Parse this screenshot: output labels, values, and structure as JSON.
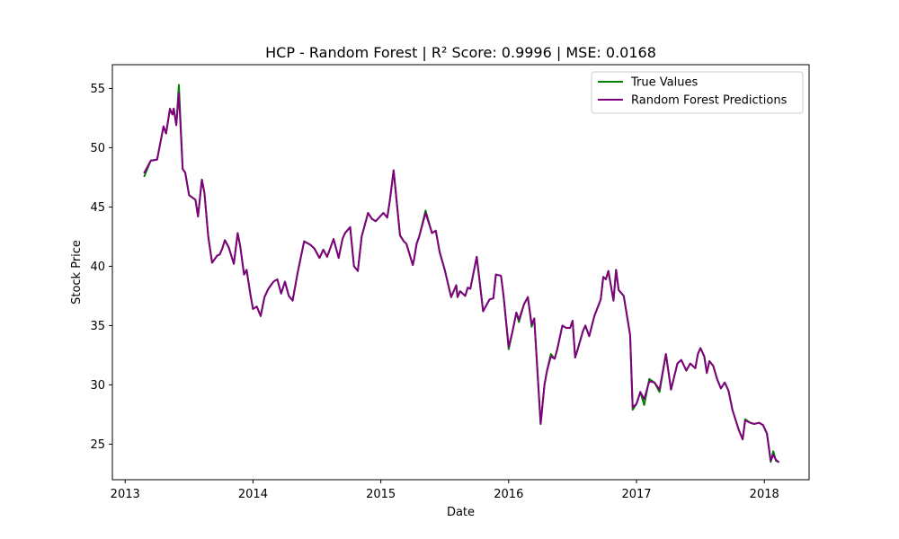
{
  "chart_data": {
    "type": "line",
    "title": "HCP - Random Forest | R² Score: 0.9996 | MSE: 0.0168",
    "xlabel": "Date",
    "ylabel": "Stock Price",
    "xlim": [
      2012.9,
      2018.35
    ],
    "ylim": [
      22,
      57
    ],
    "x_ticks": [
      2013,
      2014,
      2015,
      2016,
      2017,
      2018
    ],
    "x_tick_labels": [
      "2013",
      "2014",
      "2015",
      "2016",
      "2017",
      "2018"
    ],
    "y_ticks": [
      25,
      30,
      35,
      40,
      45,
      50,
      55
    ],
    "y_tick_labels": [
      "25",
      "30",
      "35",
      "40",
      "45",
      "50",
      "55"
    ],
    "grid": false,
    "legend": "top-right",
    "x": [
      2013.15,
      2013.2,
      2013.25,
      2013.3,
      2013.32,
      2013.35,
      2013.37,
      2013.38,
      2013.4,
      2013.42,
      2013.45,
      2013.47,
      2013.5,
      2013.55,
      2013.57,
      2013.6,
      2013.62,
      2013.65,
      2013.68,
      2013.72,
      2013.74,
      2013.76,
      2013.78,
      2013.81,
      2013.85,
      2013.88,
      2013.9,
      2013.93,
      2013.95,
      2013.98,
      2014.0,
      2014.03,
      2014.06,
      2014.09,
      2014.12,
      2014.16,
      2014.19,
      2014.22,
      2014.25,
      2014.28,
      2014.31,
      2014.35,
      2014.4,
      2014.45,
      2014.48,
      2014.52,
      2014.55,
      2014.58,
      2014.6,
      2014.63,
      2014.67,
      2014.7,
      2014.72,
      2014.76,
      2014.79,
      2014.82,
      2014.85,
      2014.9,
      2014.93,
      2014.96,
      2015.02,
      2015.05,
      2015.07,
      2015.1,
      2015.15,
      2015.18,
      2015.2,
      2015.25,
      2015.26,
      2015.28,
      2015.3,
      2015.35,
      2015.4,
      2015.43,
      2015.46,
      2015.5,
      2015.55,
      2015.59,
      2015.6,
      2015.62,
      2015.66,
      2015.68,
      2015.7,
      2015.75,
      2015.77,
      2015.8,
      2015.85,
      2015.88,
      2015.9,
      2015.94,
      2015.96,
      2016.0,
      2016.03,
      2016.06,
      2016.08,
      2016.12,
      2016.15,
      2016.18,
      2016.2,
      2016.25,
      2016.28,
      2016.3,
      2016.33,
      2016.36,
      2016.38,
      2016.42,
      2016.45,
      2016.48,
      2016.5,
      2016.52,
      2016.54,
      2016.58,
      2016.6,
      2016.63,
      2016.67,
      2016.72,
      2016.74,
      2016.76,
      2016.78,
      2016.82,
      2016.84,
      2016.86,
      2016.9,
      2016.95,
      2016.97,
      2017.0,
      2017.03,
      2017.06,
      2017.1,
      2017.14,
      2017.18,
      2017.23,
      2017.27,
      2017.32,
      2017.35,
      2017.39,
      2017.42,
      2017.46,
      2017.48,
      2017.5,
      2017.53,
      2017.55,
      2017.57,
      2017.6,
      2017.63,
      2017.66,
      2017.69,
      2017.72,
      2017.75,
      2017.8,
      2017.83,
      2017.85,
      2017.89,
      2017.92,
      2017.96,
      2017.99,
      2018.02,
      2018.05,
      2018.07,
      2018.09,
      2018.11
    ],
    "series": [
      {
        "name": "True Values",
        "color": "#008000",
        "values": [
          47.6,
          48.9,
          49.0,
          51.8,
          51.2,
          53.2,
          52.8,
          53.3,
          51.9,
          55.3,
          48.2,
          47.9,
          46.0,
          45.6,
          44.2,
          47.3,
          46.2,
          42.5,
          40.3,
          40.9,
          41.0,
          41.5,
          42.2,
          41.6,
          40.2,
          42.8,
          41.7,
          39.3,
          39.7,
          37.6,
          36.4,
          36.6,
          35.8,
          37.4,
          38.1,
          38.7,
          38.9,
          37.7,
          38.7,
          37.5,
          37.1,
          39.5,
          42.1,
          41.8,
          41.5,
          40.7,
          41.4,
          40.8,
          41.4,
          42.3,
          40.7,
          42.3,
          42.8,
          43.3,
          40.0,
          39.6,
          42.5,
          44.5,
          44.0,
          43.8,
          44.5,
          44.1,
          45.5,
          48.1,
          42.6,
          42.1,
          41.9,
          40.1,
          40.6,
          41.9,
          42.5,
          44.7,
          42.8,
          43.0,
          41.2,
          39.7,
          37.4,
          38.4,
          37.4,
          37.9,
          37.5,
          38.2,
          38.1,
          40.8,
          39.0,
          36.2,
          37.2,
          37.3,
          39.3,
          39.2,
          37.5,
          33.0,
          34.5,
          36.1,
          35.3,
          36.8,
          37.4,
          34.9,
          35.6,
          26.7,
          30.0,
          31.2,
          32.6,
          32.2,
          33.0,
          35.0,
          34.8,
          34.8,
          35.4,
          32.3,
          33.0,
          34.5,
          35.0,
          34.1,
          35.8,
          37.2,
          39.1,
          38.9,
          39.6,
          37.1,
          39.7,
          38.0,
          37.5,
          34.2,
          27.9,
          28.4,
          29.4,
          28.3,
          30.5,
          30.2,
          29.4,
          32.6,
          29.6,
          31.8,
          32.1,
          31.2,
          31.8,
          31.4,
          32.6,
          33.1,
          32.4,
          31.0,
          32.0,
          31.6,
          30.5,
          29.7,
          30.2,
          29.5,
          27.9,
          26.2,
          25.4,
          27.1,
          26.8,
          26.7,
          26.8,
          26.6,
          25.9,
          23.5,
          24.4,
          23.6,
          23.5
        ]
      },
      {
        "name": "Random Forest Predictions",
        "color": "#800080",
        "values": [
          47.9,
          48.9,
          49.0,
          51.8,
          51.2,
          53.3,
          52.8,
          53.3,
          51.9,
          54.6,
          48.2,
          47.9,
          46.0,
          45.6,
          44.2,
          47.3,
          46.2,
          42.5,
          40.3,
          40.9,
          41.0,
          41.5,
          42.2,
          41.6,
          40.2,
          42.8,
          41.7,
          39.3,
          39.7,
          37.6,
          36.4,
          36.6,
          35.8,
          37.4,
          38.1,
          38.7,
          38.9,
          37.7,
          38.7,
          37.5,
          37.1,
          39.5,
          42.1,
          41.8,
          41.5,
          40.7,
          41.4,
          40.8,
          41.4,
          42.3,
          40.7,
          42.3,
          42.8,
          43.3,
          40.0,
          39.6,
          42.5,
          44.5,
          44.0,
          43.8,
          44.5,
          44.1,
          45.5,
          48.1,
          42.6,
          42.1,
          41.9,
          40.1,
          40.6,
          41.9,
          42.5,
          44.5,
          42.8,
          43.0,
          41.2,
          39.7,
          37.4,
          38.4,
          37.4,
          37.9,
          37.5,
          38.2,
          38.1,
          40.8,
          39.0,
          36.2,
          37.2,
          37.3,
          39.3,
          39.2,
          37.5,
          33.2,
          34.5,
          36.1,
          35.5,
          36.8,
          37.4,
          35.1,
          35.6,
          26.7,
          30.0,
          31.2,
          32.4,
          32.2,
          33.0,
          35.0,
          34.8,
          34.8,
          35.4,
          32.3,
          33.0,
          34.5,
          35.0,
          34.1,
          35.8,
          37.2,
          39.1,
          38.9,
          39.6,
          37.1,
          39.7,
          38.0,
          37.5,
          34.2,
          28.1,
          28.4,
          29.4,
          28.8,
          30.3,
          30.2,
          29.6,
          32.6,
          29.6,
          31.8,
          32.1,
          31.2,
          31.8,
          31.4,
          32.6,
          33.1,
          32.4,
          31.0,
          32.0,
          31.6,
          30.5,
          29.7,
          30.2,
          29.5,
          27.9,
          26.2,
          25.4,
          27.0,
          26.8,
          26.7,
          26.8,
          26.6,
          25.9,
          23.6,
          24.1,
          23.7,
          23.5
        ]
      }
    ]
  }
}
